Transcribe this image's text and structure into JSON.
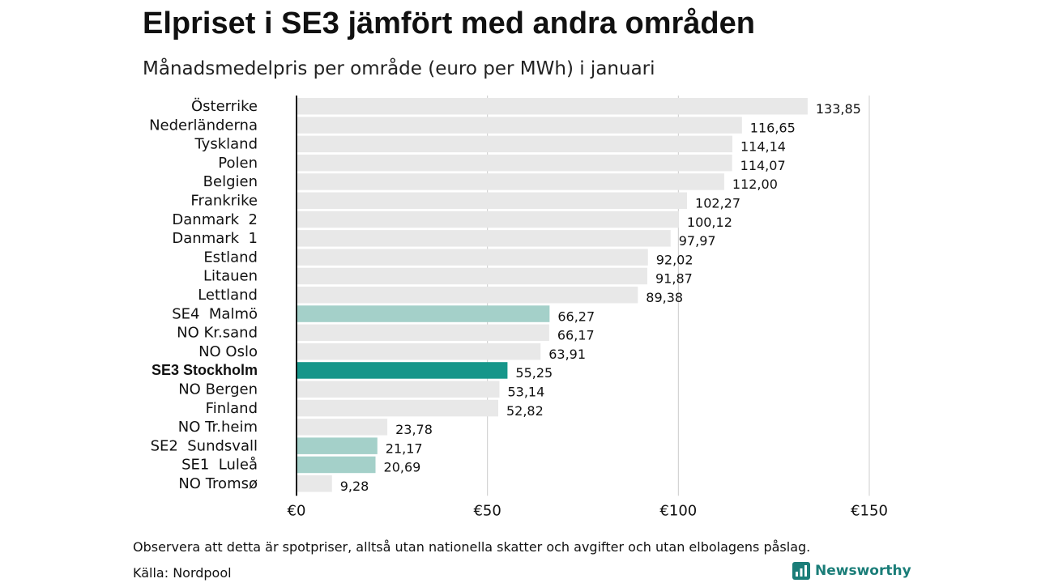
{
  "title": "Elpriset i SE3 jämfört med andra områden",
  "subtitle": "Månadsmedelpris per område (euro per MWh) i januari",
  "note": "Observera att detta är spotpriser, alltså utan nationella skatter och avgifter och utan elbolagens påslag.",
  "source": "Källa: Nordpool",
  "brand": {
    "name": "Newsworthy",
    "icon": "newsworthy-logo-icon"
  },
  "colors": {
    "default_bar": "#e8e8e8",
    "se_bar": "#a4d0c9",
    "highlight_bar": "#16968a",
    "gridline": "#cccccc",
    "axis": "#111111",
    "brand": "#1a7d78"
  },
  "chart_data": {
    "type": "bar",
    "orientation": "horizontal",
    "xlim": [
      0,
      150
    ],
    "xticks": [
      0,
      50,
      100,
      150
    ],
    "xtick_labels": [
      "€0",
      "€50",
      "€100",
      "€150"
    ],
    "grid": true,
    "legend": "none",
    "categories": [
      "Österrike",
      "Nederländerna",
      "Tyskland",
      "Polen",
      "Belgien",
      "Frankrike",
      "Danmark  2",
      "Danmark  1",
      "Estland",
      "Litauen",
      "Lettland",
      "SE4  Malmö",
      "NO Kr.sand",
      "NO Oslo",
      "SE3 Stockholm",
      "NO Bergen",
      "Finland",
      "NO Tr.heim",
      "SE2  Sundsvall",
      "SE1  Luleå",
      "NO Tromsø"
    ],
    "values": [
      133.85,
      116.65,
      114.14,
      114.07,
      112.0,
      102.27,
      100.12,
      97.97,
      92.02,
      91.87,
      89.38,
      66.27,
      66.17,
      63.91,
      55.25,
      53.14,
      52.82,
      23.78,
      21.17,
      20.69,
      9.28
    ],
    "value_labels": [
      "133,85",
      "116,65",
      "114,14",
      "114,07",
      "112,00",
      "102,27",
      "100,12",
      "97,97",
      "92,02",
      "91,87",
      "89,38",
      "66,27",
      "66,17",
      "63,91",
      "55,25",
      "53,14",
      "52,82",
      "23,78",
      "21,17",
      "20,69",
      "9,28"
    ],
    "bar_group": [
      "other",
      "other",
      "other",
      "other",
      "other",
      "other",
      "other",
      "other",
      "other",
      "other",
      "other",
      "se",
      "other",
      "other",
      "highlight",
      "other",
      "other",
      "other",
      "se",
      "se",
      "other"
    ]
  }
}
